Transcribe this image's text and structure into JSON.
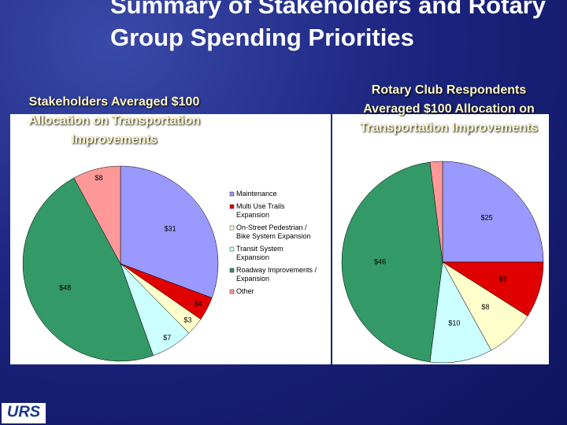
{
  "header": {
    "title": "Summary of Stakeholders and Rotary Group Spending Priorities"
  },
  "logo": {
    "text": "URS"
  },
  "chart_data": [
    {
      "type": "pie",
      "title": "Stakeholders Averaged $100 Allocation on Transportation Improvements",
      "categories": [
        "Maintenance",
        "Multi Use Trails Expansion",
        "On-Street Pedestrian / Bike System Expansion",
        "Transit System Expansion",
        "Roadway Improvements / Expansion",
        "Other"
      ],
      "values": [
        31,
        4,
        3,
        7,
        48,
        8
      ],
      "value_labels": [
        "$31",
        "$4",
        "$3",
        "$7",
        "$48",
        "$8"
      ],
      "colors": [
        "#9999ff",
        "#e00000",
        "#ffffcc",
        "#ccffff",
        "#339966",
        "#ff9999"
      ],
      "legend": "right"
    },
    {
      "type": "pie",
      "title": "Rotary Club Respondents Averaged $100 Allocation on Transportation Improvements",
      "values": [
        25,
        9,
        8,
        10,
        46,
        2
      ],
      "value_labels": [
        "$25",
        "$9",
        "$8",
        "$10",
        "$46",
        null
      ],
      "colors": [
        "#9999ff",
        "#e00000",
        "#ffffcc",
        "#ccffff",
        "#339966",
        "#ff9999"
      ]
    }
  ]
}
